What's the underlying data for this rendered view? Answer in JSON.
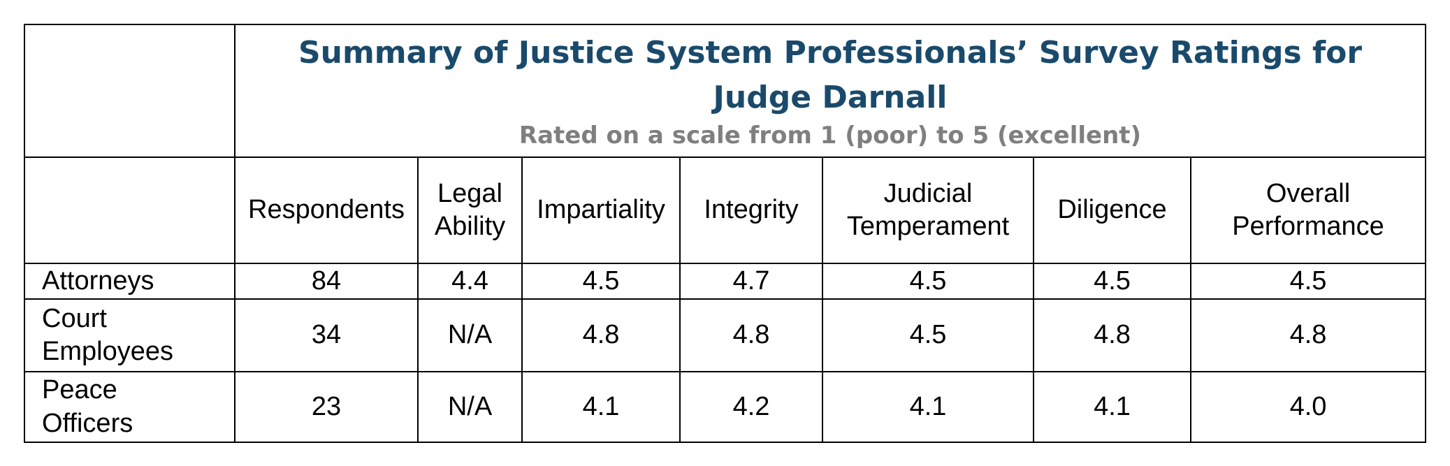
{
  "title": "Summary of Justice System Professionals’ Survey Ratings for Judge Darnall",
  "subtitle": "Rated on a scale from 1 (poor) to 5 (excellent)",
  "columns": [
    "Respondents",
    "Legal Ability",
    "Impartiality",
    "Integrity",
    "Judicial Temperament",
    "Diligence",
    "Overall Performance"
  ],
  "rows": [
    {
      "label": "Attorneys",
      "cells": [
        "84",
        "4.4",
        "4.5",
        "4.7",
        "4.5",
        "4.5",
        "4.5"
      ]
    },
    {
      "label": "Court Employees",
      "cells": [
        "34",
        "N/A",
        "4.8",
        "4.8",
        "4.5",
        "4.8",
        "4.8"
      ]
    },
    {
      "label": "Peace Officers",
      "cells": [
        "23",
        "N/A",
        "4.1",
        "4.2",
        "4.1",
        "4.1",
        "4.0"
      ]
    }
  ]
}
